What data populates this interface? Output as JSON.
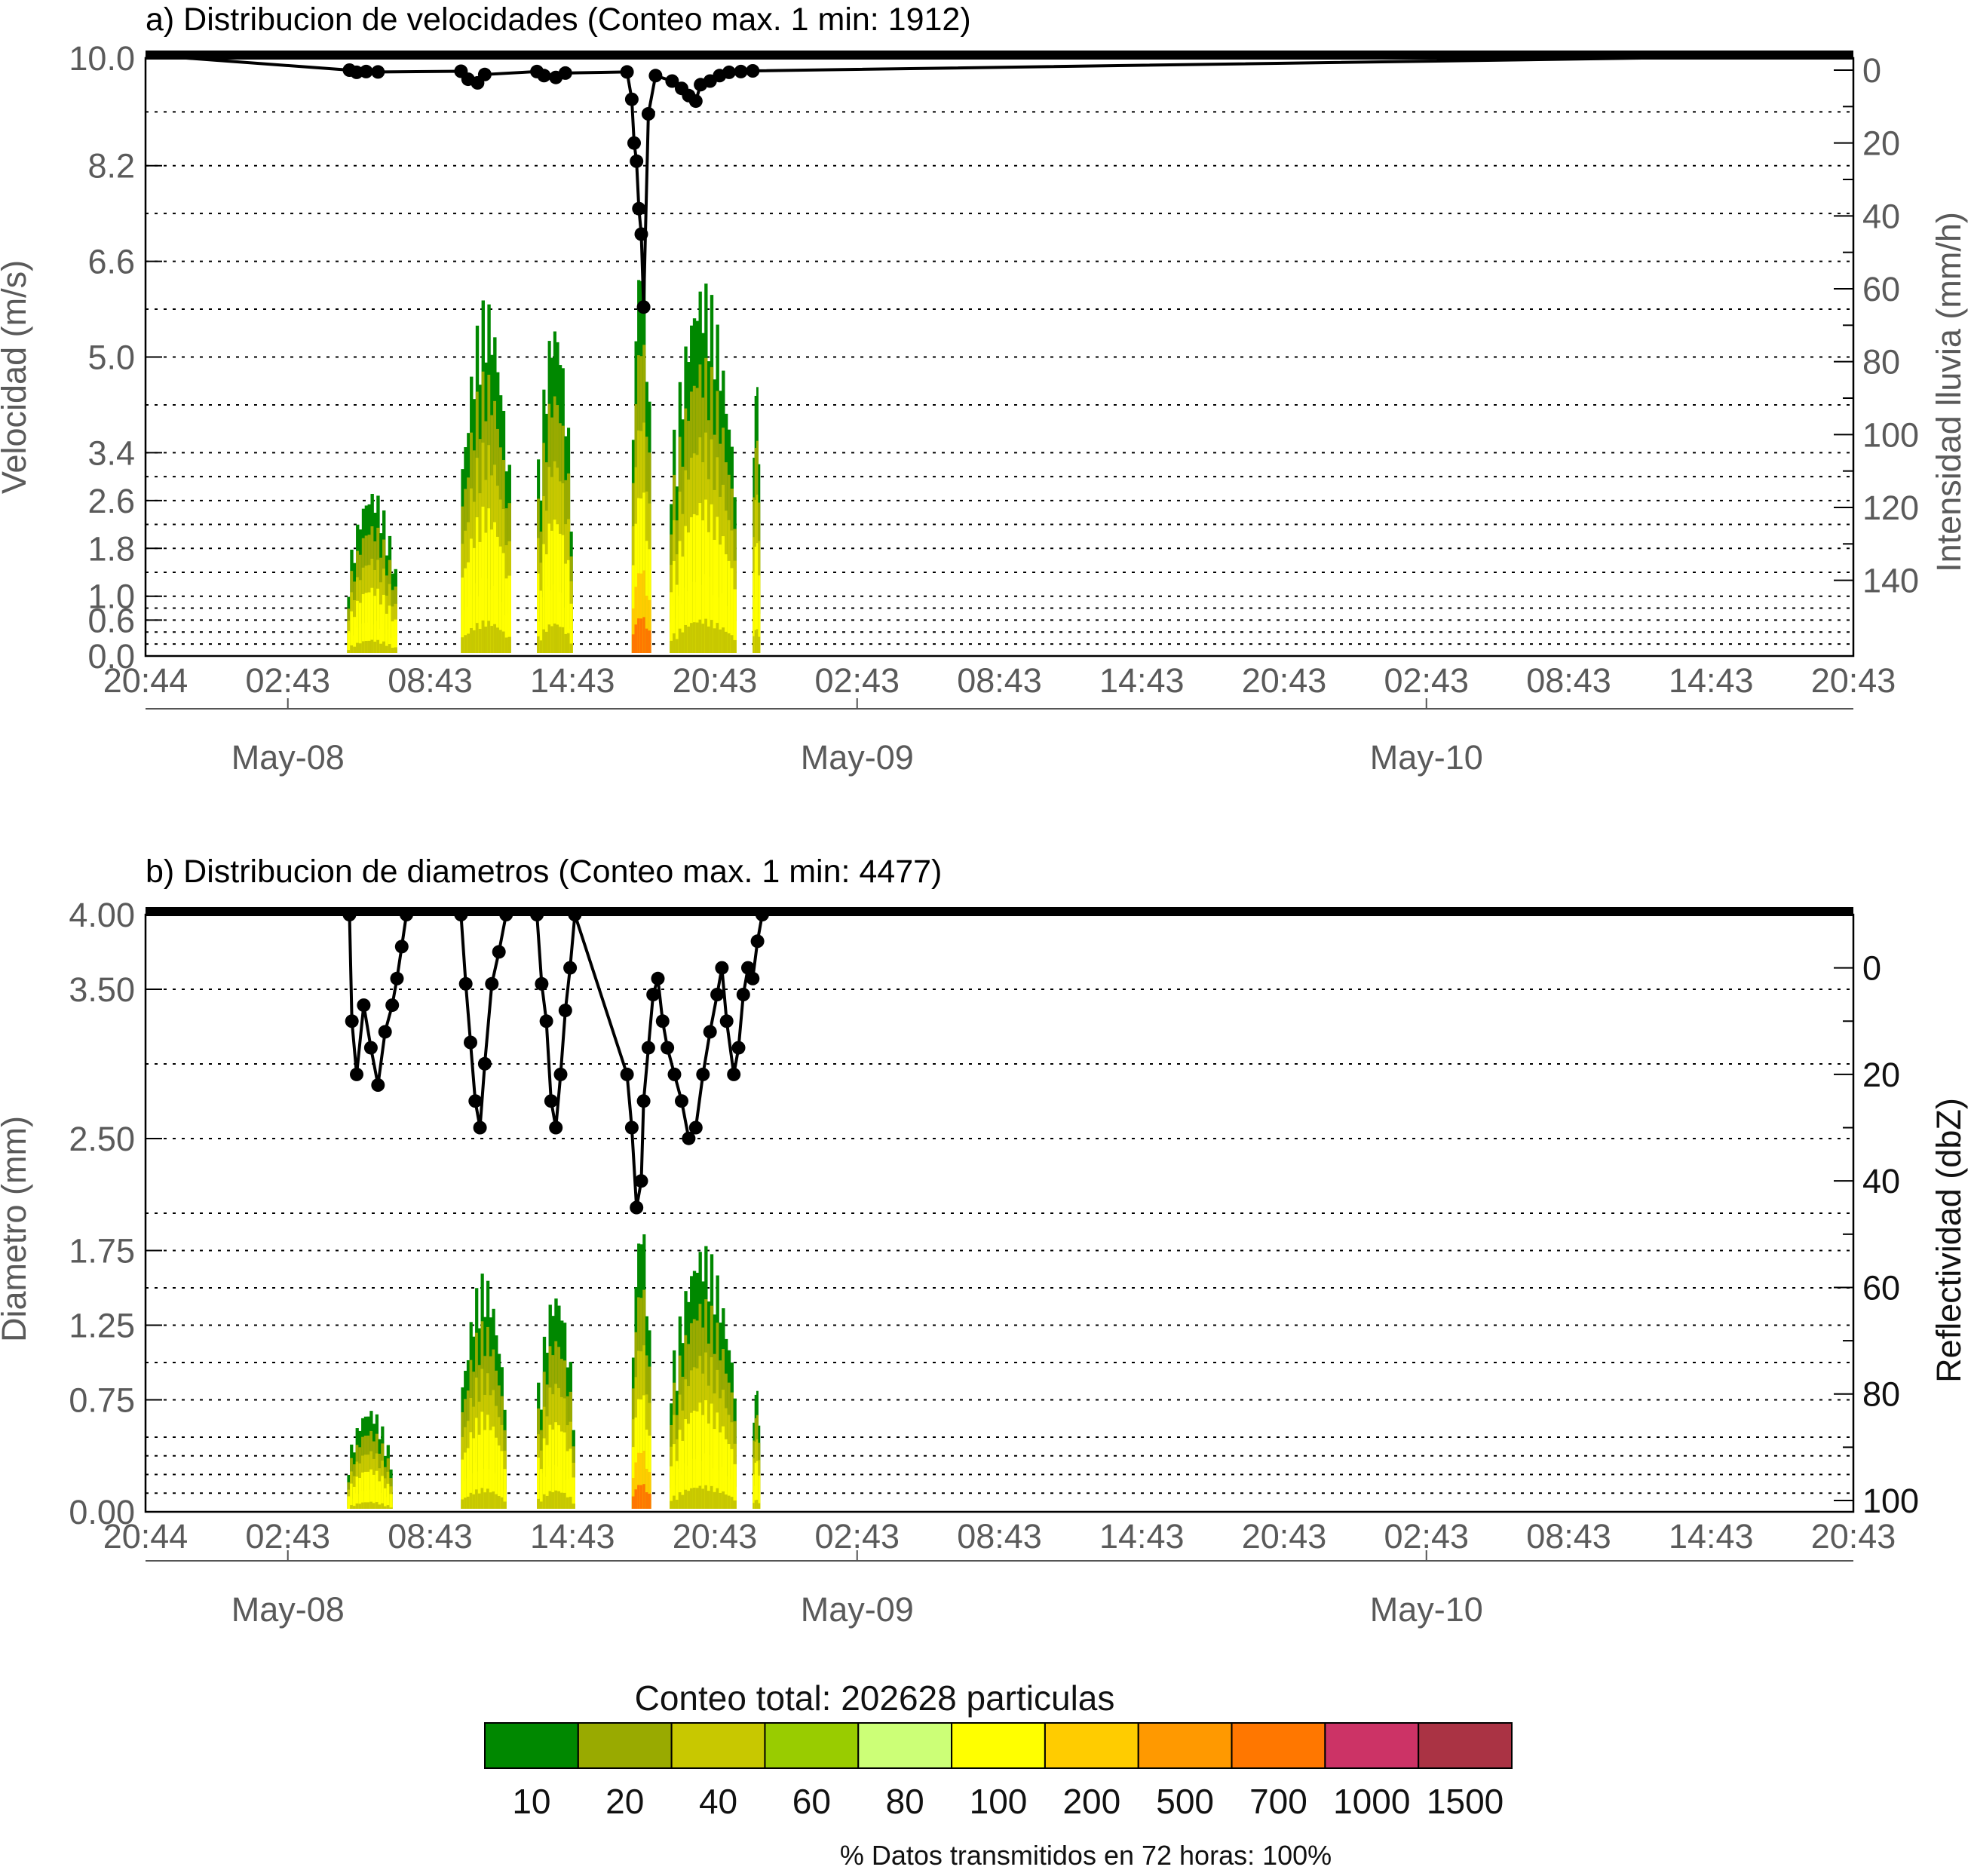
{
  "chart_data": [
    {
      "type": "heatmap",
      "title": "a) Distribucion de velocidades (Conteo max. 1 min: 1912)",
      "ylabel": "Velocidad (m/s)",
      "y2label": "Intensidad lluvia (mm/h)",
      "x_tick_labels": [
        "20:44",
        "02:43",
        "08:43",
        "14:43",
        "20:43",
        "02:43",
        "08:43",
        "14:43",
        "20:43",
        "02:43",
        "08:43",
        "14:43",
        "20:43"
      ],
      "date_labels": [
        {
          "label": "May-08",
          "hour": 6
        },
        {
          "label": "May-09",
          "hour": 30
        },
        {
          "label": "May-10",
          "hour": 54
        }
      ],
      "x_range_hours": [
        0,
        72
      ],
      "y_ticks": [
        10.0,
        8.2,
        6.6,
        5.0,
        3.4,
        2.6,
        1.8,
        1.0,
        0.6,
        0.0
      ],
      "y_tick_labels": [
        "10.0",
        "8.2",
        "6.6",
        "5.0",
        "3.4",
        "2.6",
        "1.8",
        "1.0",
        "0.6",
        "0.0"
      ],
      "y_grid": [
        10.0,
        9.1,
        8.2,
        7.4,
        6.6,
        5.8,
        5.0,
        4.2,
        3.4,
        3.0,
        2.6,
        2.2,
        1.8,
        1.4,
        1.0,
        0.8,
        0.6,
        0.4,
        0.2,
        0.0
      ],
      "y_range": [
        0.0,
        10.0
      ],
      "y2_ticks": [
        0,
        20,
        40,
        60,
        80,
        100,
        120,
        140
      ],
      "y2_range": [
        0,
        150
      ],
      "grid": true,
      "heat_events": [
        {
          "start": 8.5,
          "end": 10.6,
          "top": 2.8,
          "intensity": 0.15
        },
        {
          "start": 13.3,
          "end": 15.4,
          "top": 6.0,
          "intensity": 0.4
        },
        {
          "start": 16.5,
          "end": 18.0,
          "top": 5.7,
          "intensity": 0.3
        },
        {
          "start": 20.5,
          "end": 21.3,
          "top": 7.0,
          "intensity": 0.9
        },
        {
          "start": 22.1,
          "end": 24.9,
          "top": 6.3,
          "intensity": 0.5
        },
        {
          "start": 25.6,
          "end": 25.9,
          "top": 5.0,
          "intensity": 0.15
        }
      ],
      "rain_series": {
        "name": "Intensidad lluvia (mm/h)",
        "points": [
          [
            8.6,
            0
          ],
          [
            8.9,
            0.6
          ],
          [
            9.3,
            0.4
          ],
          [
            9.8,
            0.5
          ],
          [
            13.3,
            0.3
          ],
          [
            13.6,
            2.5
          ],
          [
            14.0,
            3.5
          ],
          [
            14.3,
            1.2
          ],
          [
            16.5,
            0.4
          ],
          [
            16.8,
            1.5
          ],
          [
            17.3,
            2.0
          ],
          [
            17.7,
            0.8
          ],
          [
            20.3,
            0.5
          ],
          [
            20.5,
            8.0
          ],
          [
            20.6,
            20.0
          ],
          [
            20.7,
            25.0
          ],
          [
            20.8,
            38.0
          ],
          [
            20.9,
            45.0
          ],
          [
            21.0,
            65.0
          ],
          [
            21.2,
            12.0
          ],
          [
            21.5,
            1.5
          ],
          [
            22.2,
            3.0
          ],
          [
            22.6,
            5.0
          ],
          [
            22.9,
            7.0
          ],
          [
            23.2,
            8.5
          ],
          [
            23.4,
            4.0
          ],
          [
            23.8,
            3.0
          ],
          [
            24.2,
            1.5
          ],
          [
            24.6,
            0.6
          ],
          [
            25.1,
            0.4
          ],
          [
            25.6,
            0.2
          ]
        ]
      }
    },
    {
      "type": "heatmap",
      "title": "b) Distribucion de diametros (Conteo max. 1 min: 4477)",
      "ylabel": "Diametro (mm)",
      "y2label": "Reflectividad (dbZ)",
      "x_tick_labels": [
        "20:44",
        "02:43",
        "08:43",
        "14:43",
        "20:43",
        "02:43",
        "08:43",
        "14:43",
        "20:43",
        "02:43",
        "08:43",
        "14:43",
        "20:43"
      ],
      "date_labels": [
        {
          "label": "May-08",
          "hour": 6
        },
        {
          "label": "May-09",
          "hour": 30
        },
        {
          "label": "May-10",
          "hour": 54
        }
      ],
      "x_range_hours": [
        0,
        72
      ],
      "y_ticks": [
        4.0,
        3.5,
        2.5,
        1.75,
        1.25,
        0.75,
        0.0
      ],
      "y_tick_labels": [
        "4.00",
        "3.50",
        "2.50",
        "1.75",
        "1.25",
        "0.75",
        "0.00"
      ],
      "y_grid": [
        4.0,
        3.5,
        3.0,
        2.5,
        2.0,
        1.75,
        1.5,
        1.25,
        1.0,
        0.75,
        0.5,
        0.375,
        0.25,
        0.125,
        0.0
      ],
      "y_range": [
        0.0,
        4.0
      ],
      "y2_ticks": [
        0,
        20,
        40,
        60,
        80,
        100
      ],
      "y2_range": [
        -10,
        100
      ],
      "grid": true,
      "heat_events": [
        {
          "start": 8.5,
          "end": 10.4,
          "top": 0.7,
          "intensity": 0.15
        },
        {
          "start": 13.3,
          "end": 15.2,
          "top": 1.6,
          "intensity": 0.4
        },
        {
          "start": 16.5,
          "end": 18.1,
          "top": 1.5,
          "intensity": 0.3
        },
        {
          "start": 20.5,
          "end": 21.3,
          "top": 2.0,
          "intensity": 0.9
        },
        {
          "start": 22.1,
          "end": 24.9,
          "top": 1.8,
          "intensity": 0.5
        },
        {
          "start": 25.6,
          "end": 25.9,
          "top": 0.9,
          "intensity": 0.15
        }
      ],
      "refl_series": {
        "name": "Reflectividad (dbZ)",
        "points": [
          [
            8.6,
            -10
          ],
          [
            8.7,
            10
          ],
          [
            8.9,
            20
          ],
          [
            9.2,
            7
          ],
          [
            9.5,
            15
          ],
          [
            9.8,
            22
          ],
          [
            10.1,
            12
          ],
          [
            10.4,
            7
          ],
          [
            10.6,
            2
          ],
          [
            10.8,
            -4
          ],
          [
            11.0,
            -10
          ],
          [
            13.3,
            -10
          ],
          [
            13.5,
            3
          ],
          [
            13.7,
            14
          ],
          [
            13.9,
            25
          ],
          [
            14.1,
            30
          ],
          [
            14.3,
            18
          ],
          [
            14.6,
            3
          ],
          [
            14.9,
            -3
          ],
          [
            15.2,
            -10
          ],
          [
            16.5,
            -10
          ],
          [
            16.7,
            3
          ],
          [
            16.9,
            10
          ],
          [
            17.1,
            25
          ],
          [
            17.3,
            30
          ],
          [
            17.5,
            20
          ],
          [
            17.7,
            8
          ],
          [
            17.9,
            0
          ],
          [
            18.1,
            -10
          ],
          [
            20.3,
            20
          ],
          [
            20.5,
            30
          ],
          [
            20.7,
            45
          ],
          [
            20.9,
            40
          ],
          [
            21.0,
            25
          ],
          [
            21.2,
            15
          ],
          [
            21.4,
            5
          ],
          [
            21.6,
            2
          ],
          [
            21.8,
            10
          ],
          [
            22.0,
            15
          ],
          [
            22.3,
            20
          ],
          [
            22.6,
            25
          ],
          [
            22.9,
            32
          ],
          [
            23.2,
            30
          ],
          [
            23.5,
            20
          ],
          [
            23.8,
            12
          ],
          [
            24.1,
            5
          ],
          [
            24.3,
            0
          ],
          [
            24.5,
            10
          ],
          [
            24.8,
            20
          ],
          [
            25.0,
            15
          ],
          [
            25.2,
            5
          ],
          [
            25.4,
            0
          ],
          [
            25.6,
            2
          ],
          [
            25.8,
            -5
          ],
          [
            26.0,
            -10
          ]
        ]
      }
    }
  ],
  "colorbar": {
    "title": "Conteo total: 202628 particulas",
    "labels": [
      "10",
      "20",
      "40",
      "60",
      "80",
      "100",
      "200",
      "500",
      "700",
      "1000",
      "1500"
    ],
    "colors": [
      "#008800",
      "#99aa00",
      "#c8c800",
      "#99cc00",
      "#ccff77",
      "#ffff00",
      "#ffcc00",
      "#ff9900",
      "#ff7700",
      "#cc3366",
      "#aa3344"
    ]
  },
  "footer": "% Datos transmitidos en 72 horas: 100%"
}
